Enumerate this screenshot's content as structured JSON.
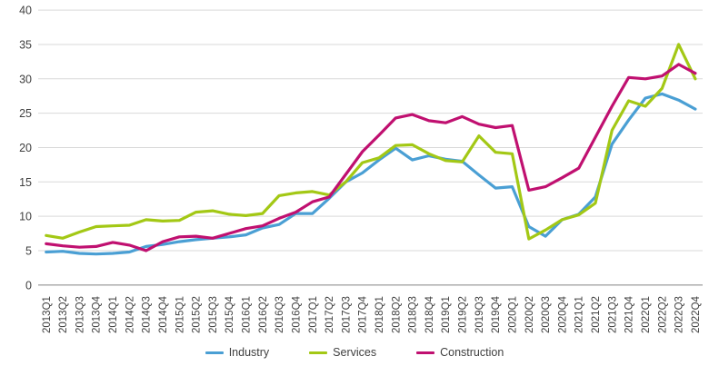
{
  "chart_data": {
    "type": "line",
    "title": "",
    "xlabel": "",
    "ylabel": "",
    "ylim": [
      0,
      40
    ],
    "ytick_step": 5,
    "grid": true,
    "legend_position": "bottom",
    "categories": [
      "2013Q1",
      "2013Q2",
      "2013Q3",
      "2013Q4",
      "2014Q1",
      "2014Q2",
      "2014Q3",
      "2014Q4",
      "2015Q1",
      "2015Q2",
      "2015Q3",
      "2015Q4",
      "2016Q1",
      "2016Q2",
      "2016Q3",
      "2016Q4",
      "2017Q1",
      "2017Q2",
      "2017Q3",
      "2017Q4",
      "2018Q1",
      "2018Q2",
      "2018Q3",
      "2018Q4",
      "2019Q1",
      "2019Q2",
      "2019Q3",
      "2019Q4",
      "2020Q1",
      "2020Q2",
      "2020Q3",
      "2020Q4",
      "2021Q1",
      "2021Q2",
      "2021Q3",
      "2021Q4",
      "2022Q1",
      "2022Q2",
      "2022Q3",
      "2022Q4"
    ],
    "series": [
      {
        "name": "Industry",
        "color": "#4A9FD4",
        "values": [
          4.8,
          4.9,
          4.6,
          4.5,
          4.6,
          4.8,
          5.6,
          5.9,
          6.3,
          6.6,
          6.8,
          7.0,
          7.3,
          8.3,
          8.8,
          10.4,
          10.4,
          12.6,
          15.0,
          16.3,
          18.2,
          19.9,
          18.2,
          18.8,
          18.3,
          18.0,
          16.0,
          14.1,
          14.3,
          8.5,
          7.1,
          9.5,
          10.3,
          12.8,
          20.5,
          24.0,
          27.2,
          27.8,
          26.9,
          25.6
        ]
      },
      {
        "name": "Services",
        "color": "#A3C815",
        "values": [
          7.2,
          6.8,
          7.7,
          8.5,
          8.6,
          8.7,
          9.5,
          9.3,
          9.4,
          10.6,
          10.8,
          10.3,
          10.1,
          10.4,
          13.0,
          13.4,
          13.6,
          13.1,
          15.0,
          17.8,
          18.5,
          20.3,
          20.4,
          19.1,
          18.1,
          17.9,
          21.7,
          19.3,
          19.1,
          6.7,
          8.0,
          9.5,
          10.2,
          11.9,
          22.5,
          26.8,
          26.0,
          28.6,
          35.0,
          30.0
        ]
      },
      {
        "name": "Construction",
        "color": "#C01070",
        "values": [
          6.0,
          5.7,
          5.5,
          5.6,
          6.2,
          5.8,
          5.0,
          6.3,
          7.0,
          7.1,
          6.8,
          7.5,
          8.2,
          8.6,
          9.7,
          10.6,
          12.1,
          12.8,
          16.1,
          19.4,
          21.8,
          24.3,
          24.8,
          23.9,
          23.6,
          24.5,
          23.4,
          22.9,
          23.2,
          13.8,
          14.3,
          15.6,
          17.0,
          21.5,
          26.0,
          30.2,
          30.0,
          30.4,
          32.1,
          30.8
        ]
      }
    ]
  },
  "style": {
    "axis_text_color": "#404040",
    "gridline_color": "#D9D9D9",
    "zero_line_color": "#A6A6A6",
    "background": "#FFFFFF"
  }
}
